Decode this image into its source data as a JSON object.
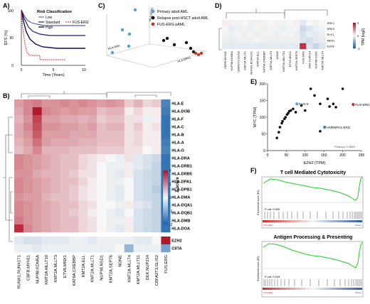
{
  "colors": {
    "hi": "#b2182b",
    "mid": "#f7f7f7",
    "lo": "#2166ac",
    "green": "#1ecf1e",
    "navy": "#1a1a7a",
    "red": "#d62728"
  },
  "panelA": {
    "letter": "A)",
    "ylabel": "EFS (%)",
    "xlabel": "Time (Years)",
    "legend_title": "Risk Classification",
    "legend": [
      "Low",
      "Standard",
      "High",
      "FUS-ERG"
    ],
    "yticks": [
      "100",
      "50",
      "0"
    ],
    "xticks": [
      "0",
      "5",
      "10"
    ]
  },
  "panelB": {
    "letter": "B)",
    "rows": [
      "HLA-E",
      "HLA-DOB",
      "HLA-F",
      "HLA-C",
      "HLA-B",
      "HLA-A",
      "HLA-G",
      "HLA-DRA",
      "HLA-DRB1",
      "HLA-DRB5",
      "HLA-DPA1",
      "HLA-DPB1",
      "HLA-DMA",
      "HLA-DQA1",
      "HLA-DQB1",
      "HLA-DMB",
      "HLA-DOA"
    ],
    "extra_rows": [
      "EZH2",
      "CIITA"
    ],
    "cols": [
      "RUNX1.RUNX1T1",
      "CBFB.MYH11",
      "NUP98.KDM5A",
      "KMT2A.MLLT10",
      "KMT2A.MLLT3",
      "ETV6.MNX1",
      "KAT6A.CREBBP",
      "KMT2A.ELL",
      "KMT2A.MLLT1",
      "NUP98.NSD1",
      "KMT2A.SEPT6",
      "NONE",
      "KMT2A.MLLT4",
      "KMT2A.MLLT11",
      "DEK.NUP214",
      "CBFA2T3.GLIS2",
      "FUS.ERG"
    ],
    "matrix": [
      [
        0.8,
        1.0,
        1.1,
        0.9,
        0.9,
        1.0,
        0.9,
        1.0,
        0.9,
        0.8,
        0.9,
        0.8,
        0.4,
        0.6,
        0.3,
        0.4,
        -1.6
      ],
      [
        0.7,
        1.0,
        2.0,
        1.0,
        0.9,
        0.8,
        0.9,
        0.8,
        0.8,
        0.5,
        0.6,
        0.6,
        0.1,
        0.3,
        0.1,
        0.1,
        -1.7
      ],
      [
        0.6,
        0.9,
        1.6,
        0.8,
        0.8,
        0.7,
        0.7,
        0.6,
        0.7,
        0.4,
        0.5,
        0.5,
        0.2,
        0.2,
        -0.1,
        0.1,
        -1.8
      ],
      [
        0.7,
        1.0,
        1.5,
        0.9,
        0.9,
        0.8,
        0.8,
        0.7,
        0.8,
        0.5,
        0.6,
        0.6,
        0.2,
        0.4,
        0.1,
        0.2,
        -1.8
      ],
      [
        0.7,
        0.9,
        1.4,
        0.8,
        0.8,
        0.8,
        0.7,
        0.7,
        0.7,
        0.5,
        0.5,
        0.5,
        0.2,
        0.3,
        0.1,
        0.1,
        -1.8
      ],
      [
        0.6,
        0.8,
        1.2,
        0.8,
        0.7,
        0.7,
        0.7,
        0.6,
        0.6,
        0.5,
        0.5,
        0.5,
        0.2,
        0.3,
        0.1,
        0.1,
        -1.7
      ],
      [
        0.5,
        0.7,
        1.0,
        0.6,
        0.6,
        0.6,
        0.5,
        0.5,
        0.5,
        0.4,
        0.4,
        0.4,
        0.2,
        0.2,
        0.0,
        0.1,
        -1.6
      ],
      [
        1.0,
        0.9,
        0.8,
        0.7,
        0.6,
        0.5,
        0.5,
        0.3,
        0.2,
        0.1,
        0.0,
        -0.1,
        0.2,
        -0.2,
        -0.3,
        -0.4,
        -1.8
      ],
      [
        1.0,
        0.9,
        0.8,
        0.7,
        0.6,
        0.5,
        0.5,
        0.3,
        0.2,
        0.0,
        -0.1,
        -0.1,
        0.1,
        -0.2,
        -0.3,
        -0.5,
        -1.8
      ],
      [
        0.9,
        0.9,
        0.7,
        0.6,
        0.6,
        0.5,
        0.4,
        0.2,
        0.2,
        0.0,
        -0.1,
        -0.2,
        0.1,
        -0.3,
        -0.4,
        -0.5,
        -1.8
      ],
      [
        1.0,
        0.9,
        0.8,
        0.7,
        0.6,
        0.5,
        0.5,
        0.3,
        0.1,
        0.0,
        -0.1,
        -0.1,
        0.0,
        -0.3,
        -0.4,
        -0.5,
        -1.8
      ],
      [
        1.0,
        0.9,
        0.8,
        0.7,
        0.6,
        0.5,
        0.4,
        0.2,
        0.1,
        0.0,
        -0.1,
        -0.2,
        0.0,
        -0.3,
        -0.4,
        -0.6,
        -1.8
      ],
      [
        0.9,
        0.8,
        0.8,
        0.6,
        0.5,
        0.5,
        0.4,
        0.2,
        0.1,
        0.0,
        -0.1,
        -0.2,
        0.0,
        -0.3,
        -0.4,
        -0.5,
        -1.7
      ],
      [
        1.0,
        0.9,
        0.8,
        0.7,
        0.6,
        0.5,
        0.5,
        0.3,
        0.2,
        0.0,
        0.0,
        -0.1,
        0.1,
        -0.2,
        -0.3,
        -0.5,
        -1.8
      ],
      [
        1.0,
        0.9,
        0.8,
        0.7,
        0.6,
        0.5,
        0.4,
        0.3,
        0.1,
        0.0,
        -0.1,
        -0.2,
        0.0,
        -0.3,
        -0.4,
        -0.5,
        -1.8
      ],
      [
        1.1,
        0.9,
        0.8,
        0.7,
        0.6,
        0.5,
        0.5,
        0.3,
        0.2,
        0.0,
        -0.1,
        -0.1,
        0.1,
        -0.3,
        -0.4,
        -0.5,
        -1.8
      ],
      [
        1.8,
        1.0,
        0.8,
        0.7,
        0.6,
        0.5,
        0.5,
        0.3,
        0.2,
        0.0,
        -0.1,
        -0.2,
        0.1,
        -0.3,
        -0.4,
        -0.5,
        -1.8
      ]
    ],
    "extra_matrix": [
      [
        -0.2,
        -0.3,
        -0.3,
        -0.2,
        -0.2,
        -0.2,
        -0.1,
        -0.1,
        -0.2,
        -0.1,
        -0.1,
        -0.1,
        -0.1,
        -0.2,
        -0.2,
        0.0,
        2.0
      ],
      [
        -0.1,
        -0.1,
        -0.2,
        -0.1,
        -0.1,
        -0.1,
        -0.1,
        -0.1,
        -0.1,
        -0.1,
        -0.1,
        0.0,
        -0.9,
        -0.1,
        -0.1,
        -0.1,
        -1.2
      ]
    ],
    "colorbar_title": "Z-score",
    "colorbar_ticks": [
      "2",
      "1",
      "0",
      "-1",
      "-2"
    ]
  },
  "panelC": {
    "letter": "C)",
    "legend": [
      {
        "label": "Primary adult AML",
        "color": "#4da3e0"
      },
      {
        "label": "Relapse post-HSCT adult AML",
        "color": "#111111"
      },
      {
        "label": "FUS-ERG pAML",
        "color": "#c0392b"
      }
    ],
    "axis_labels": [
      "HLA-DRA",
      "HLA-DPA1",
      "HLA-DPB1"
    ]
  },
  "panelD": {
    "letter": "D)",
    "rows": [
      "ERK1",
      "ERK2",
      "ELK1",
      "MEK1",
      "EZH2"
    ],
    "cols": [
      "CBFB.MYH11",
      "NUP98.KDM5A",
      "CBFA2T3.GLIS2",
      "KMT2A.MLLT1",
      "RUNX1.RUNX1T1",
      "KMT2A.ELL",
      "KAT6A.CREBBP",
      "KMT2A.MLLT3",
      "NONE",
      "KMT2A.MLLT10",
      "ETV6.MNX1",
      "KMT2A.SEPT6",
      "FUS.ERG",
      "DEK.NUP214",
      "NUP98.NSD1",
      "KMT2A.MLLT4"
    ],
    "matrix": [
      [
        0.2,
        0.1,
        -0.1,
        0.0,
        -0.2,
        0.1,
        -0.1,
        0.0,
        0.1,
        -0.1,
        0.0,
        0.1,
        -0.4,
        0.0,
        0.1,
        0.0
      ],
      [
        0.0,
        -0.3,
        -0.2,
        -0.1,
        -0.2,
        -0.1,
        -0.2,
        -0.1,
        -0.1,
        -0.2,
        -0.1,
        -0.1,
        -0.8,
        -0.5,
        -0.2,
        -0.1
      ],
      [
        -0.1,
        -0.2,
        -0.1,
        -0.2,
        -0.1,
        -0.2,
        -0.1,
        -0.1,
        -0.2,
        -0.1,
        -0.1,
        -0.2,
        -0.6,
        -0.3,
        -0.4,
        -0.2
      ],
      [
        -0.2,
        -0.3,
        -0.2,
        -0.2,
        -0.2,
        -0.1,
        -0.2,
        -0.2,
        -0.2,
        -0.2,
        -0.2,
        -0.2,
        -0.5,
        -0.7,
        -0.4,
        -0.3
      ],
      [
        -0.3,
        -0.4,
        -0.3,
        -0.4,
        -0.3,
        -0.4,
        -0.4,
        -0.3,
        -0.3,
        -0.4,
        -0.3,
        -0.4,
        3.5,
        -0.5,
        -0.9,
        -0.5
      ]
    ],
    "colorbar_title": "TPM (log2)",
    "colorbar_ticks": [
      "5",
      "0",
      "-5"
    ]
  },
  "panelE": {
    "letter": "E)",
    "xlabel": "EZH2 (TPM)",
    "ylabel": "MYC (TPM)",
    "xticks": [
      "0",
      "50",
      "100",
      "150",
      "200",
      "250"
    ],
    "yticks": [
      "0",
      "50",
      "100",
      "150",
      "200"
    ],
    "annotations": [
      "FUS-ERG",
      "FUS-X",
      "HNRNPH1-ERG"
    ],
    "stat": "Pearson: 0.6822",
    "chart_data": {
      "type": "scatter",
      "xlabel": "EZH2 (TPM)",
      "ylabel": "MYC (TPM)",
      "xlim": [
        0,
        250
      ],
      "ylim": [
        0,
        200
      ],
      "points": [
        [
          25,
          38
        ],
        [
          30,
          55
        ],
        [
          33,
          70
        ],
        [
          38,
          82
        ],
        [
          40,
          88
        ],
        [
          45,
          95
        ],
        [
          48,
          100
        ],
        [
          52,
          108
        ],
        [
          55,
          112
        ],
        [
          58,
          118
        ],
        [
          62,
          120
        ],
        [
          68,
          125
        ],
        [
          75,
          115
        ],
        [
          90,
          135
        ],
        [
          100,
          120
        ],
        [
          115,
          185
        ],
        [
          125,
          165
        ],
        [
          140,
          140
        ],
        [
          160,
          155
        ],
        [
          165,
          132
        ],
        [
          175,
          140
        ],
        [
          182,
          130
        ],
        [
          200,
          185
        ],
        [
          140,
          58
        ]
      ],
      "special": [
        {
          "x": 228,
          "y": 138,
          "label": "FUS-ERG",
          "color": "#d62728"
        },
        {
          "x": 78,
          "y": 140,
          "label": "FUS-X",
          "color": "#4da3e0"
        },
        {
          "x": 152,
          "y": 70,
          "label": "HNRNPH1-ERG",
          "color": "#3a7fa8"
        }
      ]
    }
  },
  "panelF": {
    "letter": "F)",
    "titles": [
      "T cell Mediated Cytotoxicity",
      "Antigen Processing & Presenting"
    ],
    "ylabel": "Enrichment score (ES)",
    "pvals": [
      "P-val: 0.050",
      "P-val: 0.043"
    ],
    "side_labels": [
      "FUS-ERG",
      "Others"
    ]
  }
}
